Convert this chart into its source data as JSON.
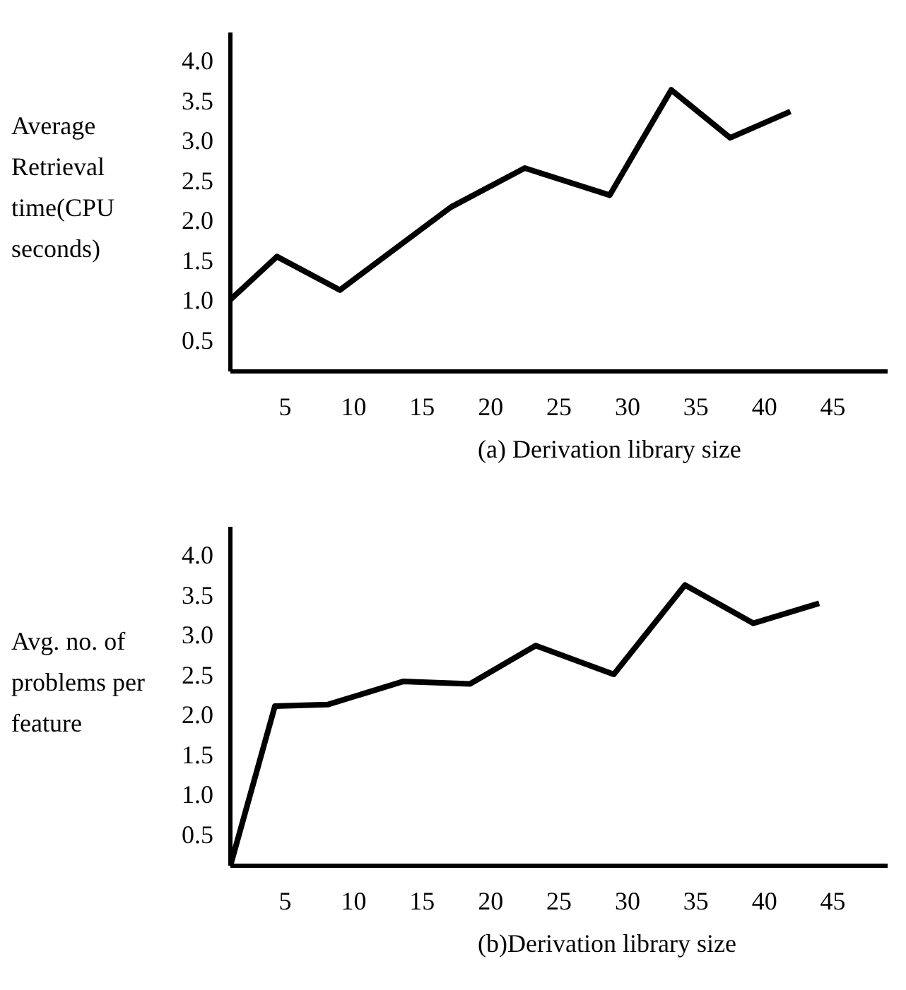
{
  "chart_data": [
    {
      "type": "line",
      "xlabel": "(a) Derivation library size",
      "ylabel": "Average Retrieval time(CPU seconds)",
      "color": "#000000",
      "x": [
        1,
        4.4,
        9,
        17.1,
        22.5,
        28.7,
        33.2,
        37.5,
        41.9
      ],
      "values": [
        1.0,
        1.54,
        1.12,
        2.16,
        2.65,
        2.31,
        3.63,
        3.03,
        3.36
      ],
      "xlim": [
        1,
        49
      ],
      "ylim": [
        0.1,
        4.35
      ],
      "xticks": [
        5,
        10,
        15,
        20,
        25,
        30,
        35,
        40,
        45
      ],
      "yticks": [
        {
          "value": 0.5,
          "label": "0.5"
        },
        {
          "value": 1,
          "label": "1.0"
        },
        {
          "value": 1.5,
          "label": "1.5"
        },
        {
          "value": 2,
          "label": "2.0"
        },
        {
          "value": 2.5,
          "label": "2.5"
        },
        {
          "value": 3,
          "label": "3.0"
        },
        {
          "value": 3.5,
          "label": "3.5"
        },
        {
          "value": 4,
          "label": "4.0"
        }
      ]
    },
    {
      "type": "line",
      "xlabel": "(b)Derivation library size",
      "ylabel": "Avg. no. of problems per feature",
      "color": "#000000",
      "x": [
        1,
        4.25,
        8.1,
        13.6,
        18.5,
        23.3,
        29,
        34.2,
        39.2,
        44
      ],
      "values": [
        0.1,
        2.1,
        2.12,
        2.41,
        2.38,
        2.86,
        2.5,
        3.62,
        3.14,
        3.39
      ],
      "xlim": [
        1,
        49
      ],
      "ylim": [
        0.1,
        4.35
      ],
      "xticks": [
        5,
        10,
        15,
        20,
        25,
        30,
        35,
        40,
        45
      ],
      "yticks": [
        {
          "value": 0.5,
          "label": "0.5"
        },
        {
          "value": 1,
          "label": "1.0"
        },
        {
          "value": 1.5,
          "label": "1.5"
        },
        {
          "value": 2,
          "label": "2.0"
        },
        {
          "value": 2.5,
          "label": "2.5"
        },
        {
          "value": 3,
          "label": "3.0"
        },
        {
          "value": 3.5,
          "label": "3.5"
        },
        {
          "value": 4,
          "label": "4.0"
        }
      ]
    }
  ]
}
